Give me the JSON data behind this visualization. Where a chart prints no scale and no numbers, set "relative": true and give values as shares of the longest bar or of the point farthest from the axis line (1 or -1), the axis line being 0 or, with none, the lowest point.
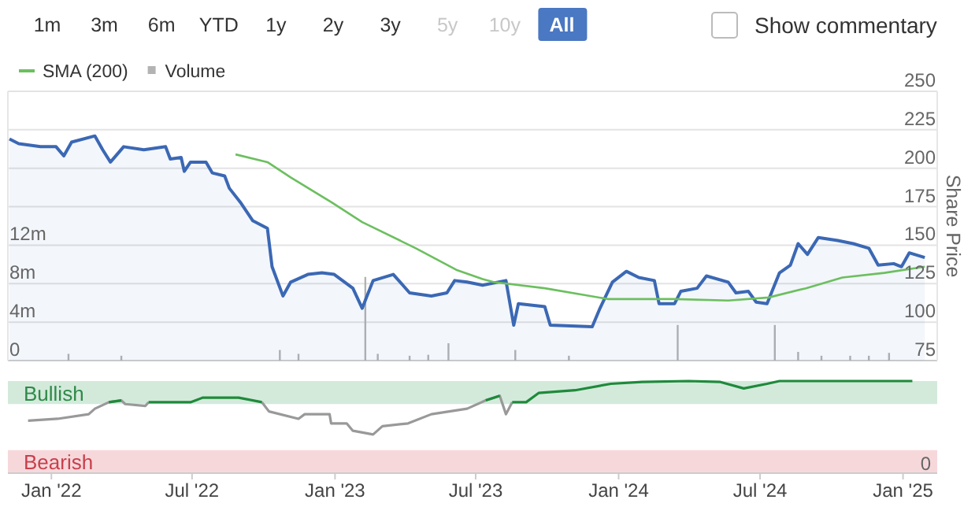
{
  "chart_data": [
    {
      "type": "other",
      "annotations": [
        "1m",
        "3m",
        "6m",
        "YTD",
        "1y",
        "2y",
        "3y",
        "5y",
        "10y",
        "All",
        "Show commentary"
      ]
    },
    {
      "type": "area",
      "ylabel": "Share Price",
      "xlim": [
        "2021-11-06",
        "2025-02-14"
      ],
      "ylim": [
        75,
        250
      ],
      "yticks": [
        75,
        100,
        125,
        150,
        175,
        200,
        225,
        250
      ],
      "y2lim": [
        0,
        28
      ],
      "y2ticks": [
        {
          "value": 0,
          "label": "0"
        },
        {
          "value": 4,
          "label": "4m"
        },
        {
          "value": 8,
          "label": "8m"
        },
        {
          "value": 12,
          "label": "12m"
        }
      ],
      "grid": "y",
      "legend": "top left",
      "tick_labels": "y",
      "series": [
        {
          "type": "area",
          "color": "#3b68b4",
          "x": [
            "2021-11-08",
            "2021-11-20",
            "2021-12-18",
            "2022-01-07",
            "2022-01-17",
            "2022-01-27",
            "2022-02-26",
            "2022-03-08",
            "2022-03-18",
            "2022-04-04",
            "2022-04-30",
            "2022-05-28",
            "2022-06-03",
            "2022-06-17",
            "2022-06-21",
            "2022-06-29",
            "2022-07-19",
            "2022-07-27",
            "2022-08-12",
            "2022-08-18",
            "2022-09-01",
            "2022-09-17",
            "2022-10-06",
            "2022-10-12",
            "2022-10-26",
            "2022-11-05",
            "2022-11-27",
            "2022-12-15",
            "2022-12-31",
            "2023-01-24",
            "2023-02-05",
            "2023-02-19",
            "2023-03-17",
            "2023-04-07",
            "2023-05-05",
            "2023-05-25",
            "2023-06-04",
            "2023-06-20",
            "2023-07-10",
            "2023-08-09",
            "2023-08-19",
            "2023-08-25",
            "2023-09-28",
            "2023-10-05",
            "2023-11-28",
            "2023-12-08",
            "2023-12-24",
            "2024-01-11",
            "2024-01-27",
            "2024-02-16",
            "2024-02-22",
            "2024-03-13",
            "2024-03-21",
            "2024-04-11",
            "2024-04-23",
            "2024-05-21",
            "2024-05-31",
            "2024-06-16",
            "2024-06-26",
            "2024-07-10",
            "2024-07-26",
            "2024-08-09",
            "2024-08-19",
            "2024-08-31",
            "2024-09-14",
            "2024-10-09",
            "2024-10-29",
            "2024-11-18",
            "2024-11-30",
            "2024-12-20",
            "2024-12-30",
            "2025-01-09",
            "2025-01-29"
          ],
          "values": [
            219,
            216,
            214,
            214,
            208,
            217,
            221,
            212,
            204,
            214,
            212,
            214,
            206,
            207,
            198,
            204,
            204,
            197,
            195,
            187,
            178,
            166,
            161,
            136,
            117,
            126,
            131,
            132,
            131,
            122,
            109,
            127,
            131,
            119,
            117,
            119,
            127,
            126,
            124,
            127,
            98,
            112,
            110,
            98,
            97,
            109,
            126,
            133,
            129,
            127,
            112,
            112,
            120,
            122,
            130,
            126,
            119,
            120,
            113,
            112,
            132,
            137,
            151,
            144,
            155,
            153,
            151,
            148,
            137,
            138,
            136,
            145,
            142
          ]
        },
        {
          "type": "line",
          "name": "SMA (200)",
          "color": "#6cbf5f",
          "x": [
            "2022-08-26",
            "2022-10-06",
            "2022-11-05",
            "2022-12-27",
            "2023-02-05",
            "2023-04-15",
            "2023-06-06",
            "2023-07-10",
            "2023-07-24",
            "2023-09-28",
            "2023-12-18",
            "2024-03-13",
            "2024-05-21",
            "2024-07-12",
            "2024-08-29",
            "2024-10-15",
            "2024-12-08",
            "2025-01-29"
          ],
          "values": [
            209,
            204,
            194,
            178,
            165,
            148,
            134,
            128,
            126,
            122,
            115,
            115,
            114,
            116,
            122,
            129,
            132,
            136
          ]
        },
        {
          "type": "bar",
          "name": "Volume",
          "axis": "y2",
          "color": "#b3b3b3",
          "x": [
            "2022-01-23",
            "2022-04-01",
            "2022-10-22",
            "2022-11-15",
            "2023-02-09",
            "2023-02-25",
            "2023-04-07",
            "2023-05-01",
            "2023-05-27",
            "2023-08-21",
            "2023-10-29",
            "2024-03-17",
            "2024-07-20",
            "2024-08-19",
            "2024-09-18",
            "2024-10-25",
            "2024-11-18",
            "2024-12-14"
          ],
          "values": [
            0.7,
            0.5,
            1.1,
            0.7,
            8.7,
            0.7,
            0.5,
            0.6,
            1.8,
            1.1,
            0.5,
            3.7,
            3.7,
            0.9,
            0.5,
            0.5,
            0.5,
            0.8
          ]
        }
      ]
    },
    {
      "type": "line",
      "relative": true,
      "xlim": [
        "2021-11-06",
        "2025-02-14"
      ],
      "xticks": [
        {
          "value": "2022-01-01",
          "label": "Jan '22"
        },
        {
          "value": "2022-07-01",
          "label": "Jul '22"
        },
        {
          "value": "2023-01-01",
          "label": "Jan '23"
        },
        {
          "value": "2023-07-01",
          "label": "Jul '23"
        },
        {
          "value": "2024-01-01",
          "label": "Jan '24"
        },
        {
          "value": "2024-07-01",
          "label": "Jul '24"
        },
        {
          "value": "2025-01-01",
          "label": "Jan '25"
        }
      ],
      "tick_labels": "x",
      "annotations": [
        "0"
      ],
      "bands": [
        {
          "axis": "y",
          "from": 0.75,
          "to": 1,
          "label": "Bullish",
          "color": "#d3eadb"
        },
        {
          "axis": "y",
          "from": 0,
          "to": 0.25,
          "label": "Bearish",
          "color": "#f6d8db"
        }
      ],
      "x": [
        "2021-12-02",
        "2022-01-09",
        "2022-02-18",
        "2022-02-26",
        "2022-03-16",
        "2022-04-01",
        "2022-04-06",
        "2022-05-02",
        "2022-05-06",
        "2022-06-29",
        "2022-07-15",
        "2022-08-30",
        "2022-09-29",
        "2022-10-08",
        "2022-11-15",
        "2022-11-23",
        "2022-12-25",
        "2022-12-27",
        "2023-01-16",
        "2023-01-24",
        "2023-02-19",
        "2023-03-03",
        "2023-04-05",
        "2023-05-05",
        "2023-06-20",
        "2023-07-14",
        "2023-08-01",
        "2023-08-09",
        "2023-08-17",
        "2023-09-04",
        "2023-09-20",
        "2023-11-06",
        "2023-12-22",
        "2024-01-31",
        "2024-03-31",
        "2024-05-11",
        "2024-06-10",
        "2024-07-10",
        "2024-07-26",
        "2025-01-13"
      ],
      "series": [
        {
          "color": "#999999",
          "values": [
            0.57,
            0.59,
            0.64,
            0.7,
            0.77,
            0.79,
            0.75,
            0.73,
            0.77,
            null,
            null,
            null,
            0.77,
            0.67,
            0.59,
            0.64,
            0.64,
            0.54,
            0.54,
            0.46,
            0.42,
            0.51,
            0.54,
            0.64,
            0.7,
            0.79,
            0.84,
            0.64,
            0.77,
            null,
            null,
            null,
            null,
            null,
            null,
            null,
            null,
            null,
            null,
            null
          ]
        },
        {
          "color": "#1f8a3b",
          "values": [
            null,
            null,
            null,
            null,
            0.77,
            0.79,
            null,
            null,
            0.77,
            0.77,
            0.82,
            0.82,
            0.77,
            null,
            null,
            null,
            null,
            null,
            null,
            null,
            null,
            null,
            null,
            null,
            null,
            0.79,
            0.84,
            null,
            0.77,
            0.77,
            0.87,
            0.9,
            0.97,
            0.99,
            1,
            0.99,
            0.92,
            0.97,
            1,
            1
          ]
        }
      ]
    }
  ]
}
